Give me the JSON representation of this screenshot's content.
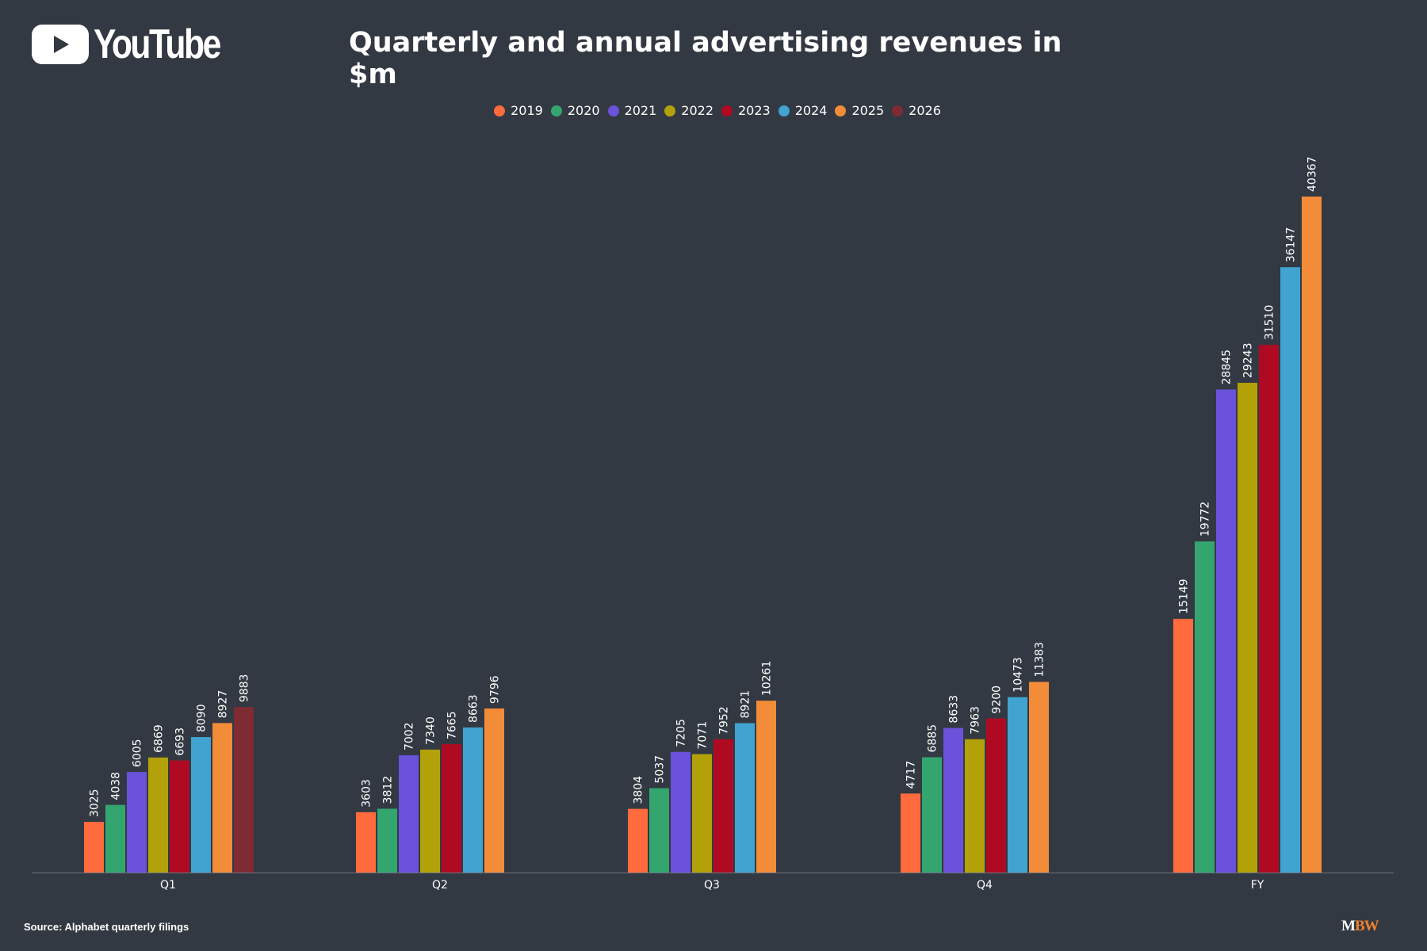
{
  "header": {
    "logo_text": "YouTube",
    "title": "Quarterly and annual advertising revenues in $m"
  },
  "footer": {
    "source": "Source: Alphabet quarterly filings",
    "brand_m": "M",
    "brand_bw": "BW"
  },
  "chart_data": {
    "type": "bar",
    "title": "Quarterly and annual advertising revenues in $m",
    "xlabel": "",
    "ylabel": "",
    "ylim": [
      0,
      42000
    ],
    "grid": false,
    "legend_position": "top-center",
    "categories": [
      "Q1",
      "Q2",
      "Q3",
      "Q4",
      "FY"
    ],
    "series": [
      {
        "name": "2019",
        "color": "#ff6b3d",
        "values": [
          3025,
          3603,
          3804,
          4717,
          15149
        ]
      },
      {
        "name": "2020",
        "color": "#34a56f",
        "values": [
          4038,
          3812,
          5037,
          6885,
          19772
        ]
      },
      {
        "name": "2021",
        "color": "#6b52db",
        "values": [
          6005,
          7002,
          7205,
          8633,
          28845
        ]
      },
      {
        "name": "2022",
        "color": "#b3a10a",
        "values": [
          6869,
          7340,
          7071,
          7963,
          29243
        ]
      },
      {
        "name": "2023",
        "color": "#b00a23",
        "values": [
          6693,
          7665,
          7952,
          9200,
          31510
        ]
      },
      {
        "name": "2024",
        "color": "#40a3d0",
        "values": [
          8090,
          8663,
          8921,
          10473,
          36147
        ]
      },
      {
        "name": "2025",
        "color": "#f28c38",
        "values": [
          8927,
          9796,
          10261,
          11383,
          40367
        ]
      },
      {
        "name": "2026",
        "color": "#7f2b33",
        "values": [
          9883,
          null,
          null,
          null,
          null
        ]
      }
    ]
  }
}
